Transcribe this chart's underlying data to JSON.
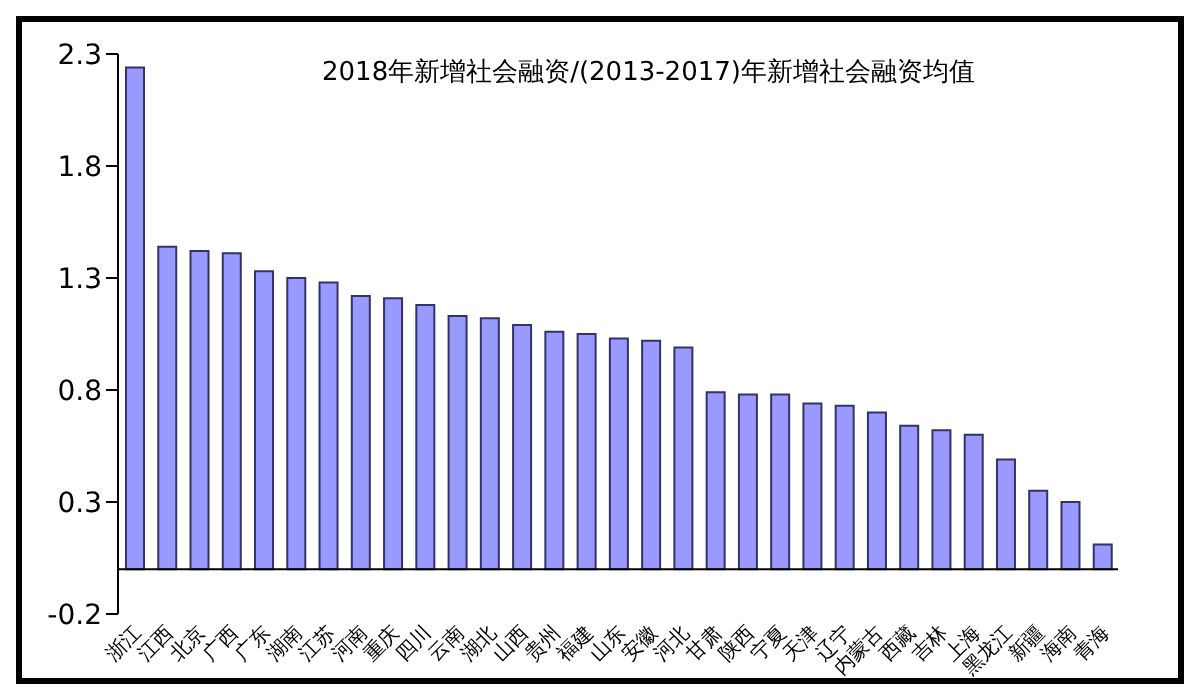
{
  "chart_data": {
    "type": "bar",
    "title": "2018年新增社会融资/(2013-2017)年新增社会融资均值",
    "categories": [
      "浙江",
      "江西",
      "北京",
      "广西",
      "广东",
      "湖南",
      "江苏",
      "河南",
      "重庆",
      "四川",
      "云南",
      "湖北",
      "山西",
      "贵州",
      "福建",
      "山东",
      "安徽",
      "河北",
      "甘肃",
      "陕西",
      "宁夏",
      "天津",
      "辽宁",
      "内蒙古",
      "西藏",
      "吉林",
      "上海",
      "黑龙江",
      "新疆",
      "海南",
      "青海"
    ],
    "values": [
      2.24,
      1.44,
      1.42,
      1.41,
      1.33,
      1.3,
      1.28,
      1.22,
      1.21,
      1.18,
      1.13,
      1.12,
      1.09,
      1.06,
      1.05,
      1.03,
      1.02,
      0.99,
      0.79,
      0.78,
      0.78,
      0.74,
      0.73,
      0.7,
      0.64,
      0.62,
      0.6,
      0.49,
      0.35,
      0.3,
      0.11
    ],
    "color": "#9999ff",
    "ylim": [
      -0.2,
      2.3
    ],
    "yticks": [
      -0.2,
      0.3,
      0.8,
      1.3,
      1.8,
      2.3
    ],
    "grid": false,
    "legend": false
  }
}
